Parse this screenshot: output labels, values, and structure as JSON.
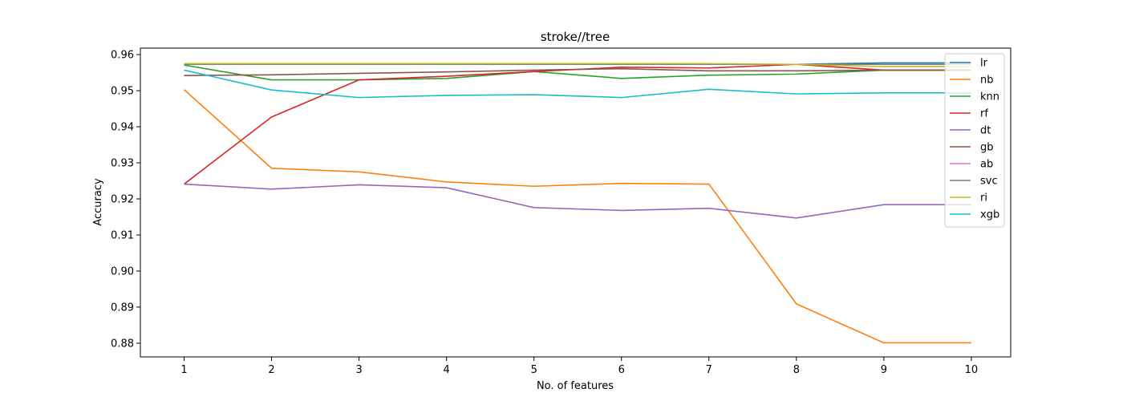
{
  "chart_data": {
    "type": "line",
    "title": "stroke//tree",
    "xlabel": "No. of features",
    "ylabel": "Accuracy",
    "x": [
      1,
      2,
      3,
      4,
      5,
      6,
      7,
      8,
      9,
      10
    ],
    "xlim": [
      0.5,
      10.45
    ],
    "ylim": [
      0.8762,
      0.9618
    ],
    "yticks": [
      0.88,
      0.89,
      0.9,
      0.91,
      0.92,
      0.93,
      0.94,
      0.95,
      0.96
    ],
    "ytick_labels": [
      "0.88",
      "0.89",
      "0.90",
      "0.91",
      "0.92",
      "0.93",
      "0.94",
      "0.95",
      "0.96"
    ],
    "xtick_labels": [
      "1",
      "2",
      "3",
      "4",
      "5",
      "6",
      "7",
      "8",
      "9",
      "10"
    ],
    "grid": false,
    "legend_position": "top-right",
    "series": [
      {
        "name": "lr",
        "color": "#1f77b4",
        "values": [
          0.9573,
          0.9573,
          0.9573,
          0.9573,
          0.9573,
          0.9573,
          0.9573,
          0.9573,
          0.9577,
          0.9577
        ]
      },
      {
        "name": "nb",
        "color": "#ff7f0e",
        "values": [
          0.9503,
          0.9285,
          0.9275,
          0.9247,
          0.9235,
          0.9243,
          0.9241,
          0.8909,
          0.8801,
          0.8801
        ]
      },
      {
        "name": "knn",
        "color": "#2ca02c",
        "values": [
          0.9571,
          0.953,
          0.953,
          0.9534,
          0.9553,
          0.9534,
          0.9543,
          0.9546,
          0.9557,
          0.9557
        ]
      },
      {
        "name": "rf",
        "color": "#d62728",
        "values": [
          0.9241,
          0.9427,
          0.953,
          0.954,
          0.9553,
          0.9565,
          0.9563,
          0.9573,
          0.9557,
          0.9557
        ]
      },
      {
        "name": "dt",
        "color": "#9467bd",
        "values": [
          0.9241,
          0.9227,
          0.9239,
          0.9231,
          0.9176,
          0.9168,
          0.9174,
          0.9147,
          0.9184,
          0.9184
        ]
      },
      {
        "name": "gb",
        "color": "#8c564b",
        "values": [
          0.9542,
          0.9544,
          0.9548,
          0.9552,
          0.9557,
          0.9561,
          0.9555,
          0.9555,
          0.9557,
          0.9557
        ]
      },
      {
        "name": "ab",
        "color": "#e377c2",
        "values": [
          0.9573,
          0.9573,
          0.9573,
          0.9573,
          0.9573,
          0.9573,
          0.9573,
          0.9573,
          0.9573,
          0.9573
        ]
      },
      {
        "name": "svc",
        "color": "#7f7f7f",
        "values": [
          0.9573,
          0.9573,
          0.9573,
          0.9573,
          0.9573,
          0.9573,
          0.9573,
          0.9573,
          0.9573,
          0.9573
        ]
      },
      {
        "name": "ri",
        "color": "#bcbd22",
        "values": [
          0.9575,
          0.9575,
          0.9575,
          0.9575,
          0.9575,
          0.9575,
          0.9575,
          0.9573,
          0.9567,
          0.9567
        ]
      },
      {
        "name": "xgb",
        "color": "#17becf",
        "values": [
          0.9557,
          0.9502,
          0.9481,
          0.9487,
          0.9489,
          0.9481,
          0.9504,
          0.9491,
          0.9494,
          0.9494
        ]
      }
    ]
  }
}
